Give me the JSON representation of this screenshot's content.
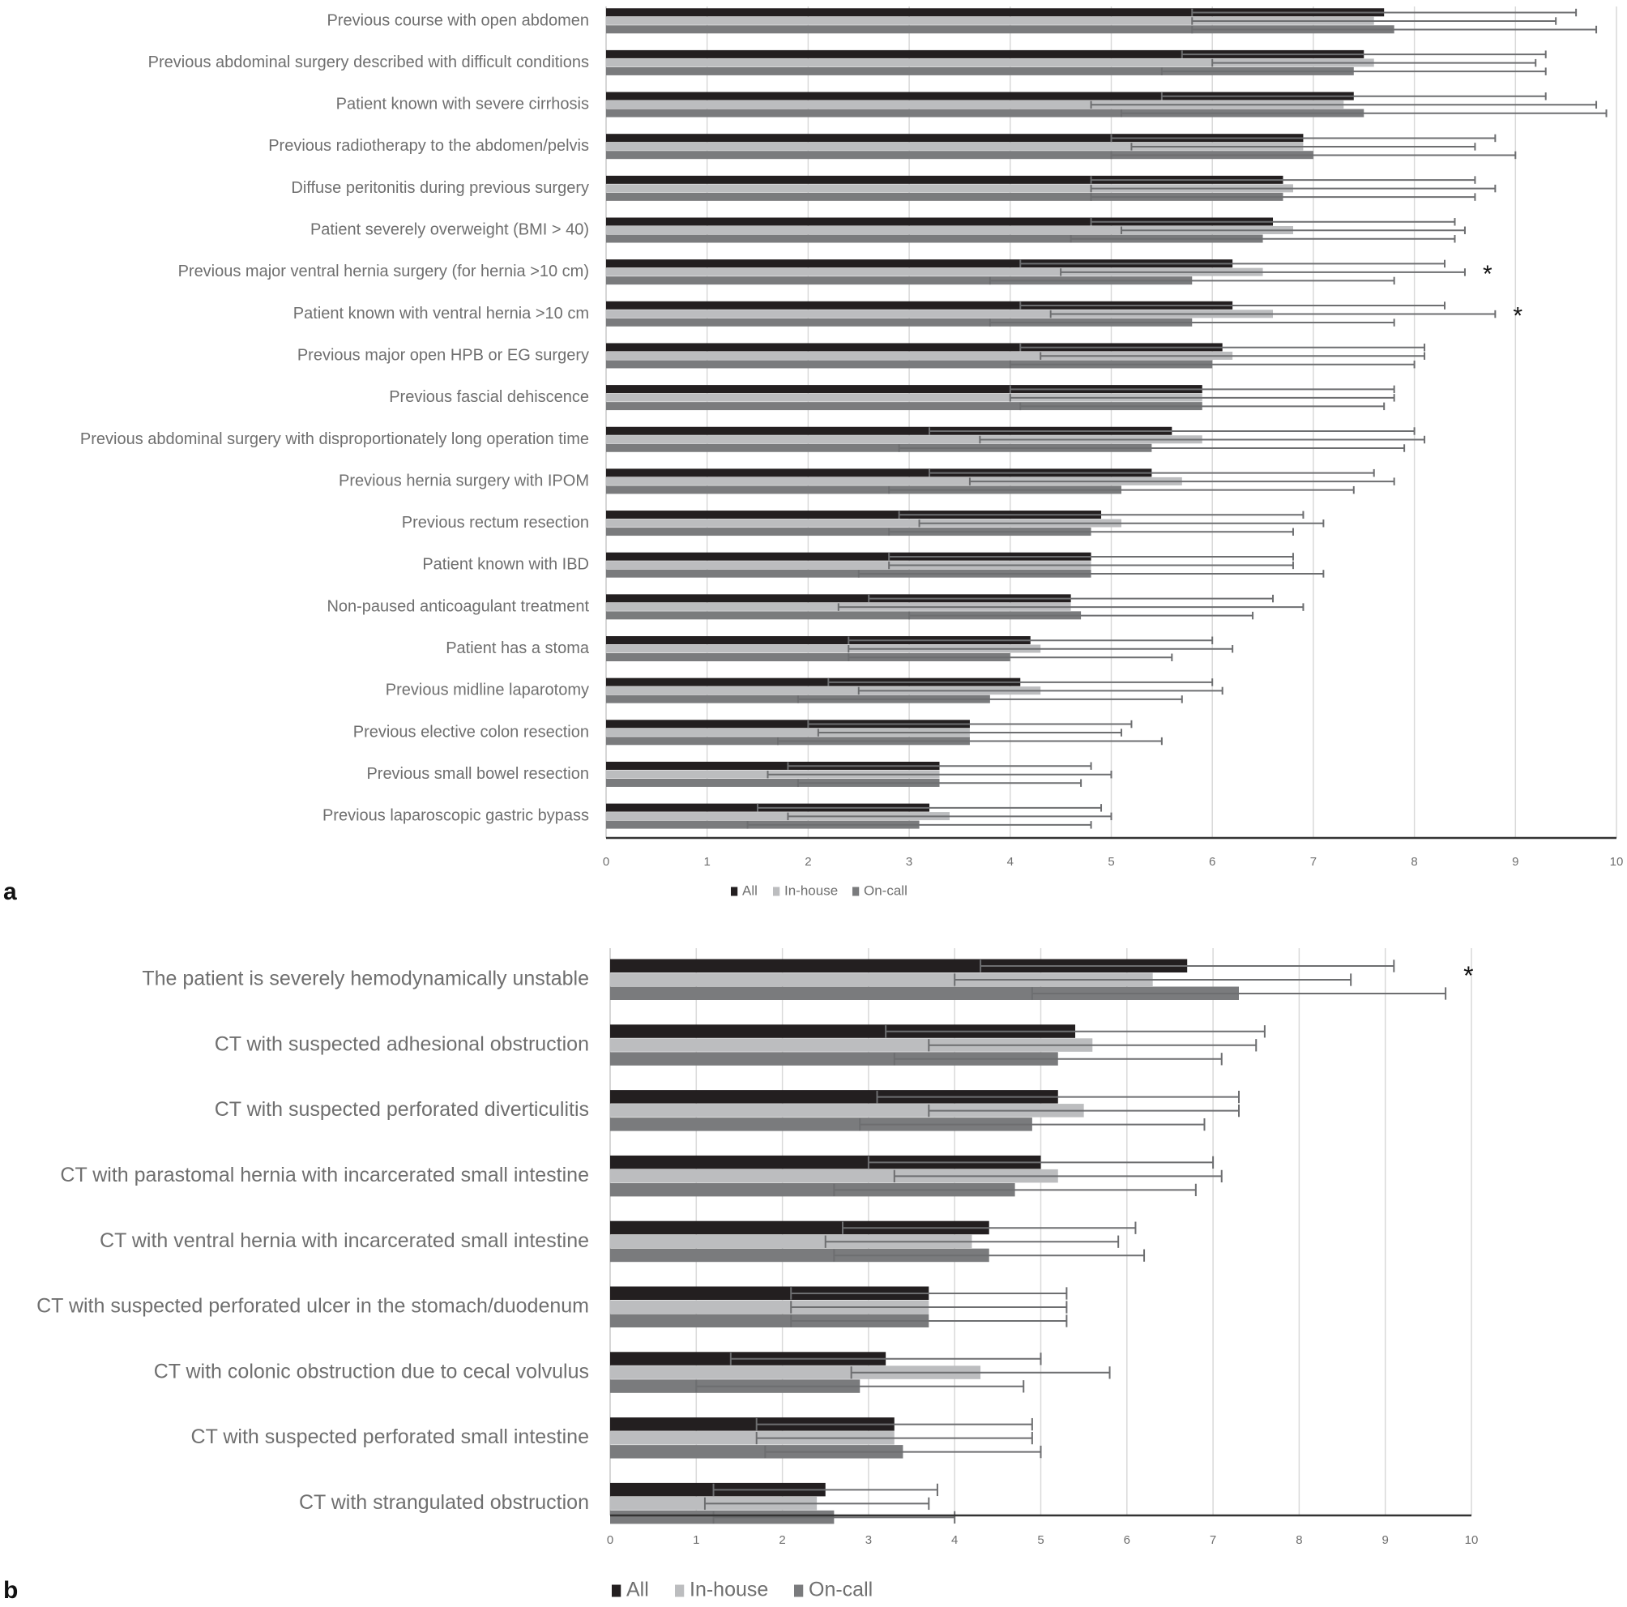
{
  "chart_data": [
    {
      "type": "bar",
      "orientation": "horizontal",
      "panel_label": "a",
      "title": "",
      "xlabel": "",
      "ylabel": "",
      "xlim": [
        0,
        10
      ],
      "x_ticks": [
        "0",
        "1",
        "2",
        "3",
        "4",
        "5",
        "6",
        "7",
        "8",
        "9",
        "10"
      ],
      "grid": true,
      "legend_position": "bottom-center",
      "legend": [
        "All",
        "In-house",
        "On-call"
      ],
      "colors": {
        "All": "#231f20",
        "In-house": "#bcbdbf",
        "On-call": "#7a7b7d",
        "error_bar": "#6d6e70",
        "gridline": "#d9d9d9"
      },
      "categories": [
        "Previous course with open abdomen",
        "Previous abdominal surgery described with difficult conditions",
        "Patient known with severe cirrhosis",
        "Previous radiotherapy to the abdomen/pelvis",
        "Diffuse peritonitis during previous surgery",
        "Patient severely overweight (BMI > 40)",
        "Previous major ventral hernia surgery (for hernia >10 cm)",
        "Patient known with ventral hernia >10 cm",
        "Previous major open HPB or EG surgery",
        "Previous fascial dehiscence",
        "Previous abdominal surgery with disproportionately long operation time",
        "Previous hernia surgery with IPOM",
        "Previous rectum resection",
        "Patient known with IBD",
        "Non-paused anticoagulant treatment",
        "Patient has a stoma",
        "Previous midline laparotomy",
        "Previous elective colon resection",
        "Previous small bowel resection",
        "Previous laparoscopic gastric bypass"
      ],
      "series": [
        {
          "name": "All",
          "values": [
            7.7,
            7.5,
            7.4,
            6.9,
            6.7,
            6.6,
            6.2,
            6.2,
            6.1,
            5.9,
            5.6,
            5.4,
            4.9,
            4.8,
            4.6,
            4.2,
            4.1,
            3.6,
            3.3,
            3.2
          ],
          "error": [
            1.9,
            1.8,
            1.9,
            1.9,
            1.9,
            1.8,
            2.1,
            2.1,
            2.0,
            1.9,
            2.4,
            2.2,
            2.0,
            2.0,
            2.0,
            1.8,
            1.9,
            1.6,
            1.5,
            1.7
          ]
        },
        {
          "name": "In-house",
          "values": [
            7.6,
            7.6,
            7.3,
            6.9,
            6.8,
            6.8,
            6.5,
            6.6,
            6.2,
            5.9,
            5.9,
            5.7,
            5.1,
            4.8,
            4.6,
            4.3,
            4.3,
            3.6,
            3.3,
            3.4
          ],
          "error": [
            1.8,
            1.6,
            2.5,
            1.7,
            2.0,
            1.7,
            2.0,
            2.2,
            1.9,
            1.9,
            2.2,
            2.1,
            2.0,
            2.0,
            2.3,
            1.9,
            1.8,
            1.5,
            1.7,
            1.6
          ]
        },
        {
          "name": "On-call",
          "values": [
            7.8,
            7.4,
            7.5,
            7.0,
            6.7,
            6.5,
            5.8,
            5.8,
            6.0,
            5.9,
            5.4,
            5.1,
            4.8,
            4.8,
            4.7,
            4.0,
            3.8,
            3.6,
            3.3,
            3.1
          ],
          "error": [
            2.0,
            1.9,
            2.4,
            2.0,
            1.9,
            1.9,
            2.0,
            2.0,
            2.0,
            1.8,
            2.5,
            2.3,
            2.0,
            2.3,
            1.7,
            1.6,
            1.9,
            1.9,
            1.4,
            1.7
          ]
        }
      ],
      "annotations": [
        {
          "text": "*",
          "category": "Previous major ventral hernia surgery (for hernia >10 cm)"
        },
        {
          "text": "*",
          "category": "Patient known with ventral hernia >10 cm"
        }
      ]
    },
    {
      "type": "bar",
      "orientation": "horizontal",
      "panel_label": "b",
      "title": "",
      "xlabel": "",
      "ylabel": "",
      "xlim": [
        0,
        10
      ],
      "x_ticks": [
        "0",
        "1",
        "2",
        "3",
        "4",
        "5",
        "6",
        "7",
        "8",
        "9",
        "10"
      ],
      "grid": true,
      "legend_position": "bottom-left",
      "legend": [
        "All",
        "In-house",
        "On-call"
      ],
      "colors": {
        "All": "#231f20",
        "In-house": "#bcbdbf",
        "On-call": "#7a7b7d",
        "error_bar": "#6d6e70",
        "gridline": "#d9d9d9"
      },
      "categories": [
        "The patient is severely hemodynamically unstable",
        "CT with suspected adhesional obstruction",
        "CT with suspected perforated diverticulitis",
        "CT with parastomal hernia with incarcerated small intestine",
        "CT with ventral hernia with incarcerated small intestine",
        "CT with suspected perforated ulcer in the stomach/duodenum",
        "CT with colonic obstruction due to cecal volvulus",
        "CT with suspected perforated small intestine",
        "CT with strangulated obstruction"
      ],
      "series": [
        {
          "name": "All",
          "values": [
            6.7,
            5.4,
            5.2,
            5.0,
            4.4,
            3.7,
            3.2,
            3.3,
            2.5
          ],
          "error": [
            2.4,
            2.2,
            2.1,
            2.0,
            1.7,
            1.6,
            1.8,
            1.6,
            1.3
          ]
        },
        {
          "name": "In-house",
          "values": [
            6.3,
            5.6,
            5.5,
            5.2,
            4.2,
            3.7,
            4.3,
            3.3,
            2.4
          ],
          "error": [
            2.3,
            1.9,
            1.8,
            1.9,
            1.7,
            1.6,
            1.5,
            1.6,
            1.3
          ]
        },
        {
          "name": "On-call",
          "values": [
            7.3,
            5.2,
            4.9,
            4.7,
            4.4,
            3.7,
            2.9,
            3.4,
            2.6
          ],
          "error": [
            2.4,
            1.9,
            2.0,
            2.1,
            1.8,
            1.6,
            1.9,
            1.6,
            1.4
          ]
        }
      ],
      "annotations": [
        {
          "text": "*",
          "category": "The patient is severely hemodynamically unstable"
        }
      ]
    }
  ]
}
